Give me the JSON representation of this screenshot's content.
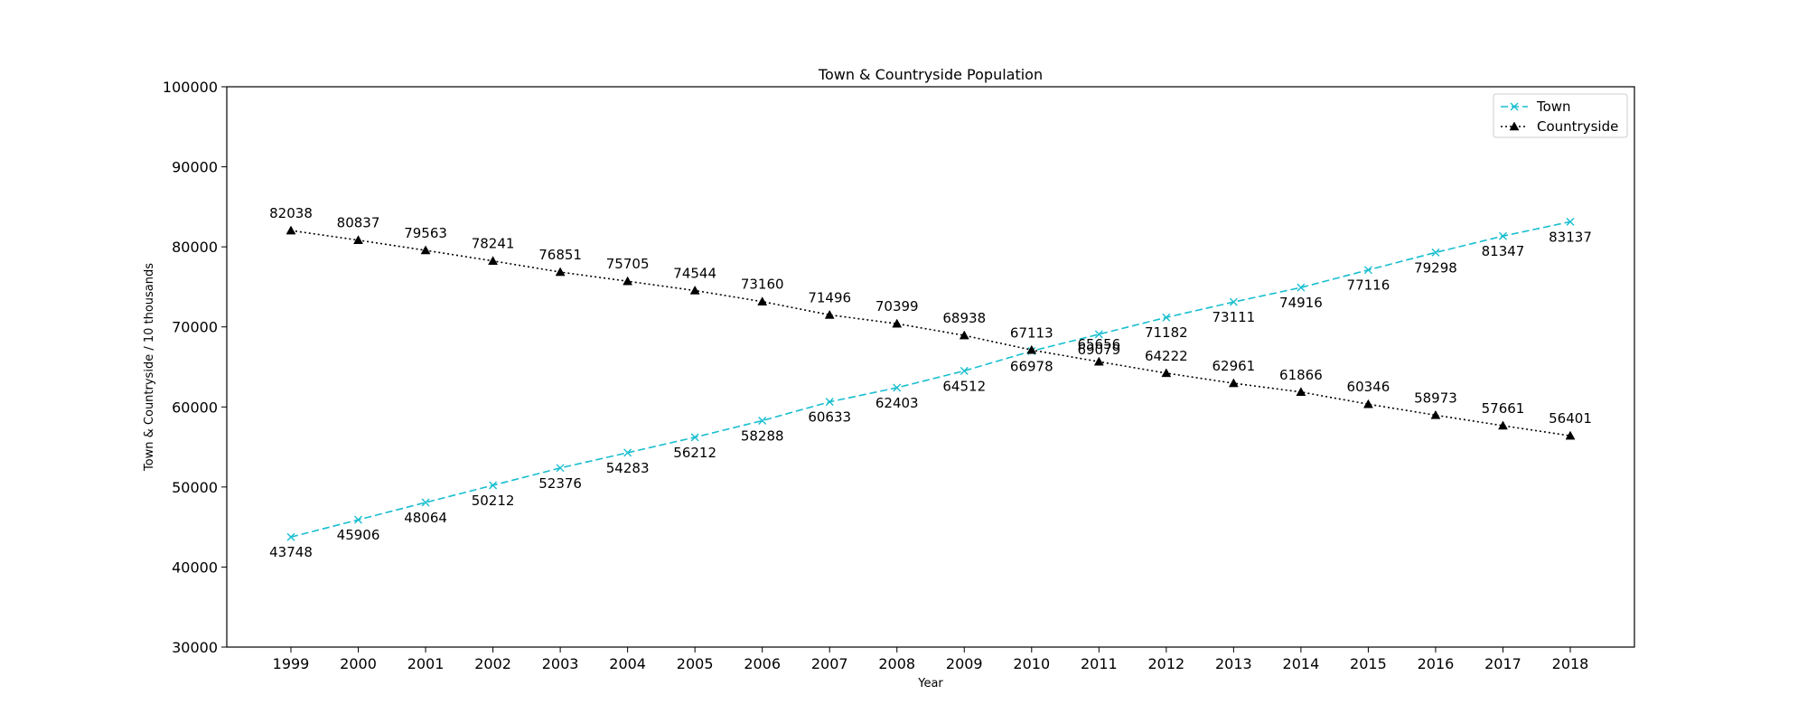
{
  "chart_data": {
    "type": "line",
    "title": "Town & Countryside Population",
    "xlabel": "Year",
    "ylabel": "Town & Countryside / 10 thousands",
    "ylim": [
      30000,
      100000
    ],
    "yticks": [
      30000,
      40000,
      50000,
      60000,
      70000,
      80000,
      90000,
      100000
    ],
    "grid": false,
    "legend_position": "top-right",
    "x": [
      "1999",
      "2000",
      "2001",
      "2002",
      "2003",
      "2004",
      "2005",
      "2006",
      "2007",
      "2008",
      "2009",
      "2010",
      "2011",
      "2012",
      "2013",
      "2014",
      "2015",
      "2016",
      "2017",
      "2018"
    ],
    "series": [
      {
        "name": "Town",
        "color": "#17becf",
        "line_style": "dashed",
        "marker": "x",
        "label_position": "below",
        "values": [
          43748,
          45906,
          48064,
          50212,
          52376,
          54283,
          56212,
          58288,
          60633,
          62403,
          64512,
          66978,
          69079,
          71182,
          73111,
          74916,
          77116,
          79298,
          81347,
          83137
        ]
      },
      {
        "name": "Countryside",
        "color": "#000000",
        "line_style": "dotted",
        "marker": "triangle",
        "label_position": "above",
        "values": [
          82038,
          80837,
          79563,
          78241,
          76851,
          75705,
          74544,
          73160,
          71496,
          70399,
          68938,
          67113,
          65656,
          64222,
          62961,
          61866,
          60346,
          58973,
          57661,
          56401
        ]
      }
    ]
  }
}
